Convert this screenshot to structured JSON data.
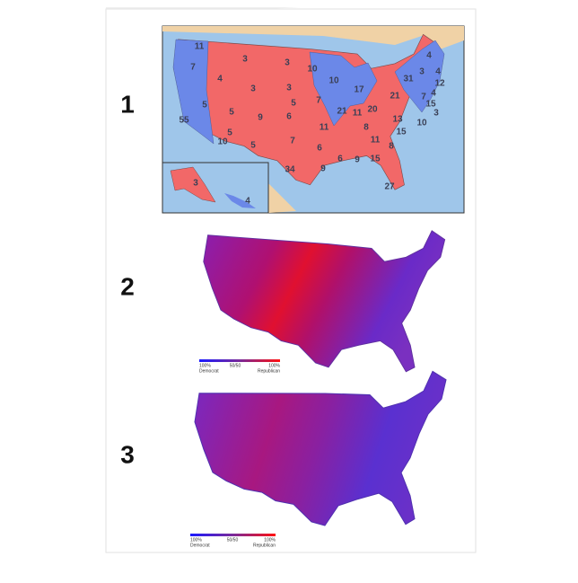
{
  "panels": [
    {
      "number": "1",
      "electoral_votes": [
        "11",
        "7",
        "3",
        "3",
        "4",
        "3",
        "3",
        "10",
        "10",
        "17",
        "4",
        "3",
        "31",
        "4",
        "12",
        "4",
        "7",
        "21",
        "15",
        "20",
        "55",
        "5",
        "5",
        "5",
        "9",
        "6",
        "5",
        "7",
        "21",
        "11",
        "11",
        "8",
        "3",
        "10",
        "13",
        "11",
        "15",
        "10",
        "5",
        "7",
        "6",
        "8",
        "15",
        "34",
        "9",
        "6",
        "9",
        "27",
        "3",
        "4"
      ]
    },
    {
      "number": "2",
      "legend": {
        "left": [
          "100%",
          "Democrat"
        ],
        "middle": "50/50",
        "right": [
          "100%",
          "Republican"
        ]
      }
    },
    {
      "number": "3",
      "legend": {
        "left": [
          "100%",
          "Democrat"
        ],
        "middle": "50/50",
        "right": [
          "100%",
          "Republican"
        ]
      }
    }
  ]
}
